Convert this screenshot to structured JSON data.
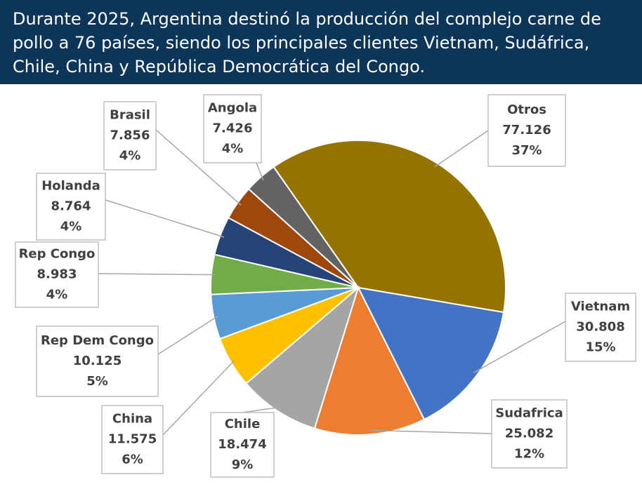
{
  "chart_data": {
    "type": "pie",
    "title": "Durante 2025, Argentina destinó la producción del complejo carne de pollo a 76 países, siendo los principales clientes Vietnam, Sudáfrica, Chile, China y República Democrática del Congo.",
    "categories": [
      "Otros",
      "Vietnam",
      "Sudafrica",
      "Chile",
      "China",
      "Rep Dem Congo",
      "Rep Congo",
      "Holanda",
      "Brasil",
      "Angola"
    ],
    "values": [
      77126,
      30808,
      25082,
      18474,
      11575,
      10125,
      8983,
      8764,
      7856,
      7426
    ],
    "value_labels": [
      "77.126",
      "30.808",
      "25.082",
      "18.474",
      "11.575",
      "10.125",
      "8.983",
      "8.764",
      "7.856",
      "7.426"
    ],
    "shares": [
      37,
      15,
      12,
      9,
      6,
      5,
      4,
      4,
      4,
      4
    ],
    "share_labels": [
      "37%",
      "15%",
      "12%",
      "9%",
      "6%",
      "5%",
      "4%",
      "4%",
      "4%",
      "4%"
    ],
    "colors": [
      "#957300",
      "#4472c4",
      "#ed7d31",
      "#a5a5a5",
      "#ffc000",
      "#5b9bd5",
      "#70ad47",
      "#264478",
      "#9e480e",
      "#636363"
    ]
  }
}
